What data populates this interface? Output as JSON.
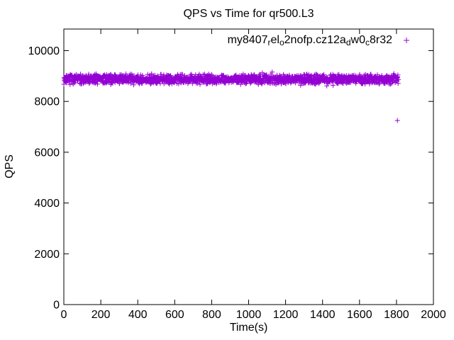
{
  "chart_data": {
    "type": "scatter",
    "title": "QPS vs Time for qr500.L3",
    "xlabel": "Time(s)",
    "ylabel": "QPS",
    "xlim": [
      0,
      2000
    ],
    "ylim": [
      0,
      10850
    ],
    "x_ticks": [
      0,
      200,
      400,
      600,
      800,
      1000,
      1200,
      1400,
      1600,
      1800,
      2000
    ],
    "y_ticks": [
      0,
      2000,
      4000,
      6000,
      8000,
      10000
    ],
    "grid": false,
    "frame_color": "#000000",
    "text_color": "#000000",
    "legend_position": "top-right-inside",
    "series": [
      {
        "name": "my8407_rel_o2nofp.cz12a_dw0_c8r32",
        "label_parts": [
          {
            "t": "my8407",
            "sub": false
          },
          {
            "t": "r",
            "sub": true
          },
          {
            "t": "el",
            "sub": false
          },
          {
            "t": "o",
            "sub": true
          },
          {
            "t": "2nofp.cz12a",
            "sub": false
          },
          {
            "t": "d",
            "sub": true
          },
          {
            "t": "w0",
            "sub": false
          },
          {
            "t": "c",
            "sub": true
          },
          {
            "t": "8r32",
            "sub": false
          }
        ],
        "marker": "plus",
        "color": "#9400D3",
        "band": {
          "x_start": 0,
          "x_end": 1810,
          "n_points": 1600,
          "y_mean": 8880,
          "y_jitter": 220,
          "spike_fraction": 0.07,
          "spike_extra": 130,
          "seed": 7
        },
        "outliers": [
          [
            1805,
            7250
          ]
        ]
      }
    ]
  }
}
